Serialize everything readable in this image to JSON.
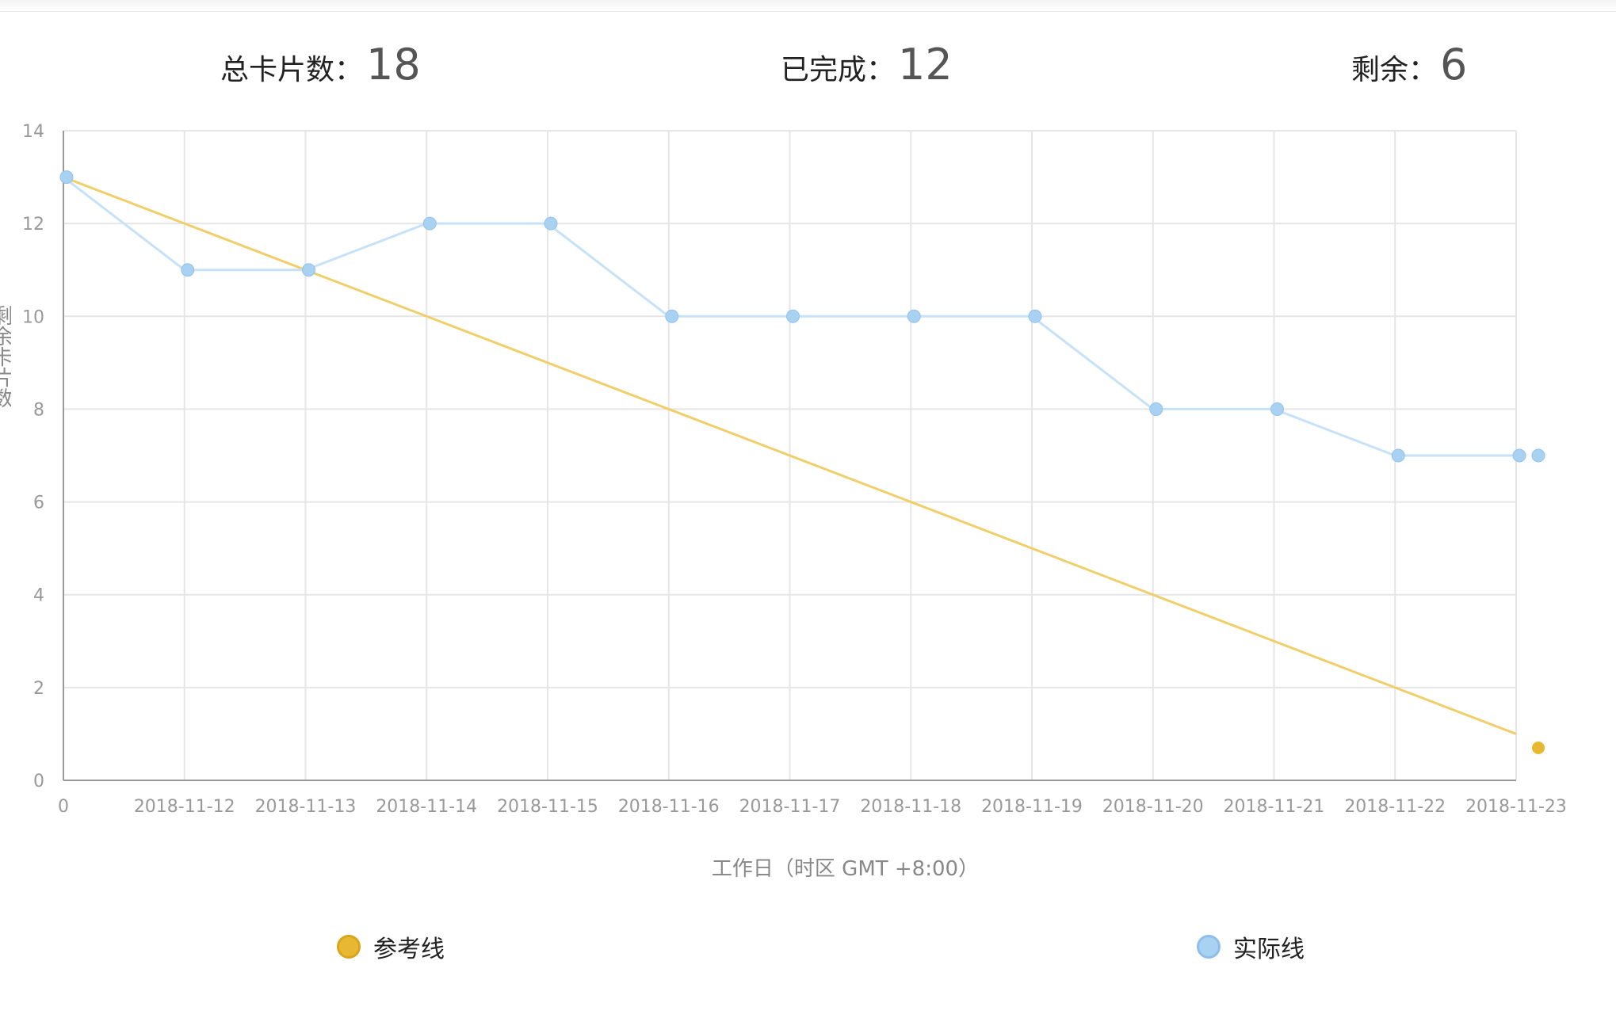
{
  "stats": {
    "total_label": "总卡片数：",
    "total_value": "18",
    "done_label": "已完成：",
    "done_value": "12",
    "remaining_label": "剩余：",
    "remaining_value": "6"
  },
  "chart_data": {
    "type": "line",
    "categories": [
      "0",
      "2018-11-12",
      "2018-11-13",
      "2018-11-14",
      "2018-11-15",
      "2018-11-16",
      "2018-11-17",
      "2018-11-18",
      "2018-11-19",
      "2018-11-20",
      "2018-11-21",
      "2018-11-22",
      "2018-11-23"
    ],
    "xlabel": "工作日（时区 GMT +8:00）",
    "ylabel": "剩余卡片数",
    "ylim": [
      0,
      14
    ],
    "yticks": [
      0,
      2,
      4,
      6,
      8,
      10,
      12,
      14
    ],
    "grid": true,
    "series": [
      {
        "name": "参考线",
        "color": "#f0cf6a",
        "values": [
          13,
          12,
          11,
          10,
          9,
          8,
          7,
          6,
          5,
          4,
          3,
          2,
          1
        ],
        "end_marker_value": 0.7
      },
      {
        "name": "实际线",
        "color": "#c7e2f8",
        "marker_color": "#a8d1f2",
        "values": [
          13,
          11,
          11,
          12,
          12,
          10,
          10,
          10,
          10,
          8,
          8,
          7,
          7
        ],
        "end_marker_value": 7
      }
    ]
  },
  "legend": {
    "reference_label": "参考线",
    "actual_label": "实际线"
  }
}
